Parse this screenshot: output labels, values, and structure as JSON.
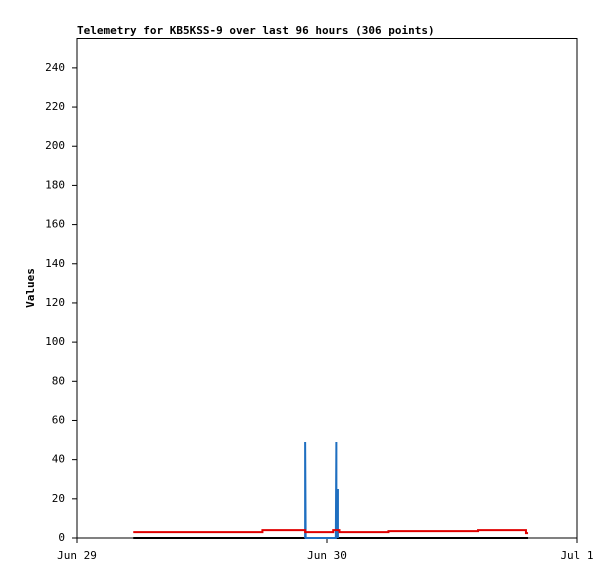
{
  "chart_data": {
    "type": "line",
    "title": "Telemetry for KB5KSS-9 over last 96 hours (306 points)",
    "ylabel": "Values",
    "xlim": [
      0,
      48
    ],
    "xticks": [
      {
        "value": 0,
        "label": "Jun 29"
      },
      {
        "value": 24,
        "label": "Jun 30"
      },
      {
        "value": 48,
        "label": "Jul 1"
      }
    ],
    "ylim": [
      0,
      255
    ],
    "yticks": [
      0,
      20,
      40,
      60,
      80,
      100,
      120,
      140,
      160,
      180,
      200,
      220,
      240
    ],
    "grid": false,
    "series": [
      {
        "color": "#000000",
        "x": [
          5.4,
          43.3
        ],
        "values": [
          0,
          0
        ]
      },
      {
        "color": "#1f6fc0",
        "x": [
          21.9,
          21.9,
          21.95,
          24.85,
          24.9,
          24.9,
          25.05,
          25.05
        ],
        "values": [
          0,
          49,
          0,
          0,
          49,
          0,
          25,
          0
        ]
      },
      {
        "color": "#e00000",
        "x": [
          5.4,
          17.8,
          17.8,
          21.9,
          21.9,
          24.6,
          24.6,
          25.2,
          25.2,
          29.9,
          29.9,
          38.5,
          38.5,
          43.1,
          43.1,
          43.3
        ],
        "values": [
          3,
          3,
          4,
          4,
          3,
          3,
          4,
          4,
          3,
          3,
          3.5,
          3.5,
          4,
          4,
          2.5,
          2.5
        ]
      }
    ]
  }
}
